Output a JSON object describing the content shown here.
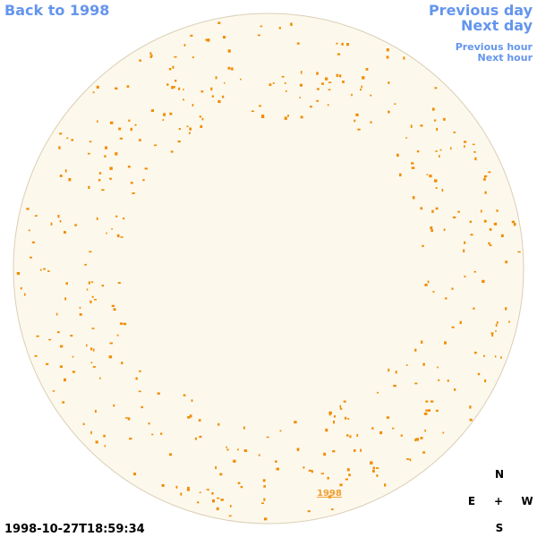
{
  "nav": {
    "back_year": "Back to 1998",
    "previous_day": "Previous day",
    "next_day": "Next day",
    "previous_hour": "Previous hour",
    "next_hour": "Next hour"
  },
  "image": {
    "year_link": "1998",
    "timestamp": "1998-10-27T18:59:34"
  },
  "compass": {
    "north": "N",
    "east": "E",
    "center": "+",
    "west": "W",
    "south": "S"
  }
}
